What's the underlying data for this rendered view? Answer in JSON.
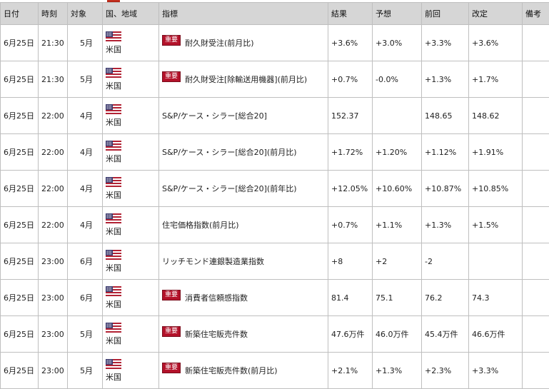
{
  "headers": [
    "日付",
    "時刻",
    "対象",
    "国、地域",
    "指標",
    "結果",
    "予想",
    "前回",
    "改定",
    "備考"
  ],
  "badge_label": "重要",
  "colors": {
    "header_bg": "#d6d6d6",
    "badge_bg": "#b3122a",
    "border": "#bfbfbf"
  },
  "flag_icon": "us-flag-icon",
  "rows": [
    {
      "date": "6月25日",
      "time": "21:30",
      "month": "5月",
      "country": "米国",
      "important": true,
      "indicator": "耐久財受注(前月比)",
      "result": "+3.6%",
      "forecast": "+3.0%",
      "previous": "+3.3%",
      "revised": "+3.6%",
      "note": ""
    },
    {
      "date": "6月25日",
      "time": "21:30",
      "month": "5月",
      "country": "米国",
      "important": true,
      "indicator": "耐久財受注[除輸送用機器](前月比)",
      "result": "+0.7%",
      "forecast": "-0.0%",
      "previous": "+1.3%",
      "revised": "+1.7%",
      "note": ""
    },
    {
      "date": "6月25日",
      "time": "22:00",
      "month": "4月",
      "country": "米国",
      "important": false,
      "indicator": "S&P/ケース・シラー[総合20]",
      "result": "152.37",
      "forecast": "",
      "previous": "148.65",
      "revised": "148.62",
      "note": ""
    },
    {
      "date": "6月25日",
      "time": "22:00",
      "month": "4月",
      "country": "米国",
      "important": false,
      "indicator": "S&P/ケース・シラー[総合20](前月比)",
      "result": "+1.72%",
      "forecast": "+1.20%",
      "previous": "+1.12%",
      "revised": "+1.91%",
      "note": ""
    },
    {
      "date": "6月25日",
      "time": "22:00",
      "month": "4月",
      "country": "米国",
      "important": false,
      "indicator": "S&P/ケース・シラー[総合20](前年比)",
      "result": "+12.05%",
      "forecast": "+10.60%",
      "previous": "+10.87%",
      "revised": "+10.85%",
      "note": ""
    },
    {
      "date": "6月25日",
      "time": "22:00",
      "month": "4月",
      "country": "米国",
      "important": false,
      "indicator": "住宅価格指数(前月比)",
      "result": "+0.7%",
      "forecast": "+1.1%",
      "previous": "+1.3%",
      "revised": "+1.5%",
      "note": ""
    },
    {
      "date": "6月25日",
      "time": "23:00",
      "month": "6月",
      "country": "米国",
      "important": false,
      "indicator": "リッチモンド連銀製造業指数",
      "result": "+8",
      "forecast": "+2",
      "previous": "-2",
      "revised": "",
      "note": ""
    },
    {
      "date": "6月25日",
      "time": "23:00",
      "month": "6月",
      "country": "米国",
      "important": true,
      "indicator": "消費者信頼感指数",
      "result": "81.4",
      "forecast": "75.1",
      "previous": "76.2",
      "revised": "74.3",
      "note": ""
    },
    {
      "date": "6月25日",
      "time": "23:00",
      "month": "5月",
      "country": "米国",
      "important": true,
      "indicator": "新築住宅販売件数",
      "result": "47.6万件",
      "forecast": "46.0万件",
      "previous": "45.4万件",
      "revised": "46.6万件",
      "note": ""
    },
    {
      "date": "6月25日",
      "time": "23:00",
      "month": "5月",
      "country": "米国",
      "important": true,
      "indicator": "新築住宅販売件数(前月比)",
      "result": "+2.1%",
      "forecast": "+1.3%",
      "previous": "+2.3%",
      "revised": "+3.3%",
      "note": ""
    }
  ]
}
